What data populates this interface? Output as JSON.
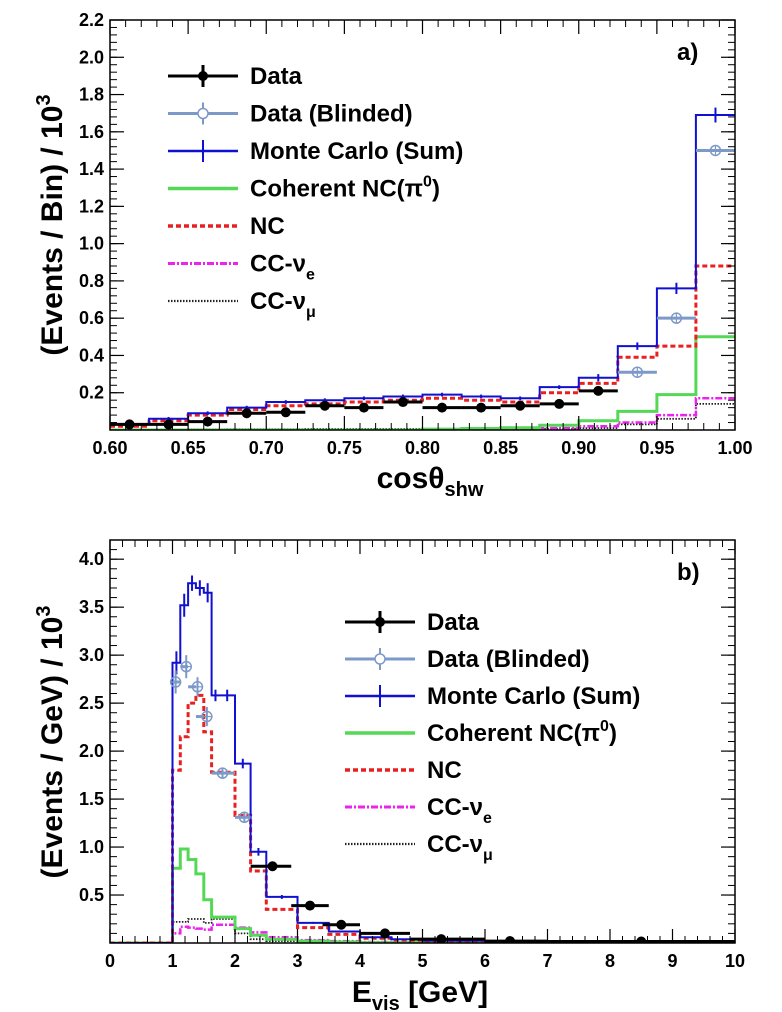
{
  "chart_data": [
    {
      "type": "line",
      "panel_label": "a)",
      "xlabel": "cosθ",
      "xlabel_sub": "shw",
      "ylabel": "(Events / Bin) / 10",
      "ylabel_sup": "3",
      "xlim": [
        0.6,
        1.0
      ],
      "ylim": [
        0,
        2.2
      ],
      "x_ticks": [
        0.6,
        0.65,
        0.7,
        0.75,
        0.8,
        0.85,
        0.9,
        0.95,
        1.0
      ],
      "x_tick_labels": [
        "0.60",
        "0.65",
        "0.70",
        "0.75",
        "0.80",
        "0.85",
        "0.90",
        "0.95",
        "1.00"
      ],
      "y_ticks": [
        0.2,
        0.4,
        0.6,
        0.8,
        1.0,
        1.2,
        1.4,
        1.6,
        1.8,
        2.0,
        2.2
      ],
      "y_tick_labels": [
        "0.2",
        "0.4",
        "0.6",
        "0.8",
        "1.0",
        "1.2",
        "1.4",
        "1.6",
        "1.8",
        "2.0",
        "2.2"
      ],
      "bin_edges": [
        0.6,
        0.625,
        0.65,
        0.675,
        0.7,
        0.725,
        0.75,
        0.775,
        0.8,
        0.825,
        0.85,
        0.875,
        0.9,
        0.925,
        0.95,
        0.975,
        1.0
      ],
      "series": [
        {
          "name": "Monte Carlo (Sum)",
          "style": "mc",
          "color": "#1010d0",
          "values": [
            0.03,
            0.06,
            0.09,
            0.12,
            0.15,
            0.16,
            0.17,
            0.18,
            0.19,
            0.18,
            0.17,
            0.23,
            0.28,
            0.45,
            0.76,
            1.69
          ],
          "errors": [
            0.01,
            0.01,
            0.01,
            0.01,
            0.01,
            0.01,
            0.01,
            0.01,
            0.01,
            0.01,
            0.01,
            0.01,
            0.02,
            0.02,
            0.03,
            0.04
          ]
        },
        {
          "name": "NC",
          "style": "nc",
          "color": "#e82020",
          "values": [
            0.02,
            0.05,
            0.08,
            0.11,
            0.13,
            0.14,
            0.15,
            0.16,
            0.17,
            0.16,
            0.15,
            0.2,
            0.25,
            0.39,
            0.45,
            0.88
          ]
        },
        {
          "name": "Coherent NC(π0)",
          "style": "coh",
          "color": "#55d855",
          "values": [
            0.0,
            0.0,
            0.0,
            0.0,
            0.0,
            0.0,
            0.0,
            0.0,
            0.005,
            0.008,
            0.012,
            0.025,
            0.05,
            0.1,
            0.19,
            0.5
          ]
        },
        {
          "name": "CC-νe",
          "style": "cce",
          "color": "#ee22ee",
          "values": [
            0.0,
            0.0,
            0.0,
            0.0,
            0.0,
            0.0,
            0.0,
            0.0,
            0.0,
            0.0,
            0.005,
            0.01,
            0.02,
            0.04,
            0.08,
            0.17
          ]
        },
        {
          "name": "CC-νμ",
          "style": "ccm",
          "color": "#222222",
          "values": [
            0.003,
            0.003,
            0.004,
            0.005,
            0.005,
            0.006,
            0.006,
            0.006,
            0.006,
            0.006,
            0.006,
            0.007,
            0.01,
            0.03,
            0.06,
            0.14
          ]
        }
      ],
      "data_points": {
        "name": "Data",
        "color": "#000000",
        "x": [
          0.6125,
          0.6375,
          0.6625,
          0.6875,
          0.7125,
          0.7375,
          0.7625,
          0.7875,
          0.8125,
          0.8375,
          0.8625,
          0.8875,
          0.9125
        ],
        "y": [
          0.03,
          0.03,
          0.045,
          0.09,
          0.095,
          0.13,
          0.12,
          0.15,
          0.12,
          0.12,
          0.13,
          0.14,
          0.21
        ],
        "xerr_ends": [
          [
            0.6,
            0.625
          ],
          [
            0.625,
            0.65
          ],
          [
            0.65,
            0.675
          ],
          [
            0.675,
            0.7
          ],
          [
            0.7,
            0.725
          ],
          [
            0.725,
            0.75
          ],
          [
            0.75,
            0.775
          ],
          [
            0.775,
            0.8
          ],
          [
            0.8,
            0.825
          ],
          [
            0.825,
            0.85
          ],
          [
            0.85,
            0.875
          ],
          [
            0.875,
            0.9
          ],
          [
            0.9,
            0.925
          ]
        ]
      },
      "blinded_points": {
        "name": "Data (Blinded)",
        "color": "#7d99c8",
        "x": [
          0.9375,
          0.9625,
          0.9875
        ],
        "y": [
          0.31,
          0.6,
          1.5
        ],
        "xerr_ends": [
          [
            0.925,
            0.95
          ],
          [
            0.95,
            0.975
          ],
          [
            0.975,
            1.0
          ]
        ]
      },
      "legend": {
        "placement": "top-left",
        "entries": [
          {
            "label": "Data",
            "sub": "",
            "sup": "",
            "style": "data"
          },
          {
            "label": "Data (Blinded)",
            "sub": "",
            "sup": "",
            "style": "blinded"
          },
          {
            "label": "Monte Carlo (Sum)",
            "sub": "",
            "sup": "",
            "style": "mc"
          },
          {
            "label": "Coherent NC(π",
            "sub": "",
            "sup": "0",
            "tail": ")",
            "style": "coh"
          },
          {
            "label": "NC",
            "sub": "",
            "sup": "",
            "style": "nc"
          },
          {
            "label": "CC-ν",
            "sub": "e",
            "sup": "",
            "style": "cce"
          },
          {
            "label": "CC-ν",
            "sub": "μ",
            "sup": "",
            "style": "ccm"
          }
        ]
      }
    },
    {
      "type": "line",
      "panel_label": "b)",
      "xlabel": "E",
      "xlabel_sub": "vis",
      "xlabel_tail": " [GeV]",
      "ylabel": "(Events / GeV) / 10",
      "ylabel_sup": "3",
      "xlim": [
        0,
        10
      ],
      "ylim": [
        0,
        4.2
      ],
      "x_ticks": [
        0,
        1,
        2,
        3,
        4,
        5,
        6,
        7,
        8,
        9,
        10
      ],
      "x_tick_labels": [
        "0",
        "1",
        "2",
        "3",
        "4",
        "5",
        "6",
        "7",
        "8",
        "9",
        "10"
      ],
      "y_ticks": [
        0.5,
        1.0,
        1.5,
        2.0,
        2.5,
        3.0,
        3.5,
        4.0
      ],
      "y_tick_labels": [
        "0.5",
        "1.0",
        "1.5",
        "2.0",
        "2.5",
        "3.0",
        "3.5",
        "4.0"
      ],
      "bin_edges": [
        0,
        1,
        1.125,
        1.25,
        1.375,
        1.5,
        1.625,
        1.75,
        2,
        2.25,
        2.5,
        3,
        3.5,
        4,
        4.5,
        5,
        6,
        7,
        8,
        9,
        10
      ],
      "series": [
        {
          "name": "Monte Carlo (Sum)",
          "style": "mc",
          "color": "#1010d0",
          "values": [
            0,
            2.92,
            3.52,
            3.75,
            3.7,
            3.65,
            2.58,
            2.58,
            1.87,
            0.95,
            0.48,
            0.21,
            0.12,
            0.06,
            0.04,
            0.025,
            0.012,
            0.006,
            0.004,
            0.002
          ],
          "errors": [
            0,
            0.12,
            0.12,
            0.08,
            0.08,
            0.1,
            0.06,
            0.06,
            0.05,
            0.04,
            0.02,
            0.01,
            0.01,
            0.005,
            0.005,
            0.003,
            0.002,
            0.001,
            0.001,
            0.001
          ]
        },
        {
          "name": "NC",
          "style": "nc",
          "color": "#e82020",
          "values": [
            0,
            1.8,
            2.15,
            2.5,
            2.58,
            2.2,
            1.78,
            1.78,
            1.33,
            0.75,
            0.35,
            0.16,
            0.09,
            0.05,
            0.03,
            0.02,
            0.01,
            0.005,
            0.003,
            0.002
          ]
        },
        {
          "name": "Coherent NC(π0)",
          "style": "coh",
          "color": "#55d855",
          "values": [
            0,
            0.78,
            0.98,
            0.87,
            0.72,
            0.45,
            0.27,
            0.27,
            0.15,
            0.08,
            0.04,
            0.02,
            0.01,
            0.004,
            0.002,
            0.001,
            0,
            0,
            0,
            0
          ]
        },
        {
          "name": "CC-νe",
          "style": "cce",
          "color": "#ee22ee",
          "values": [
            0,
            0.1,
            0.17,
            0.16,
            0.15,
            0.14,
            0.19,
            0.19,
            0.16,
            0.11,
            0.06,
            0.03,
            0.02,
            0.01,
            0.005,
            0.003,
            0.001,
            0,
            0,
            0
          ]
        },
        {
          "name": "CC-νμ",
          "style": "ccm",
          "color": "#222222",
          "values": [
            0,
            0.22,
            0.22,
            0.25,
            0.25,
            0.21,
            0.25,
            0.25,
            0.1,
            0.04,
            0.02,
            0.01,
            0.005,
            0.002,
            0.001,
            0,
            0,
            0,
            0,
            0
          ]
        }
      ],
      "data_points": {
        "name": "Data",
        "color": "#000000",
        "x": [
          2.6,
          3.2,
          3.7,
          4.4,
          5.3,
          6.4,
          8.5
        ],
        "y": [
          0.8,
          0.39,
          0.19,
          0.1,
          0.04,
          0.02,
          0.015
        ],
        "xerr_ends": [
          [
            2.25,
            2.9
          ],
          [
            2.9,
            3.5
          ],
          [
            3.4,
            4.0
          ],
          [
            4.0,
            4.8
          ],
          [
            4.8,
            6.0
          ],
          [
            6.0,
            7.0
          ],
          [
            7.0,
            10.0
          ]
        ]
      },
      "blinded_points": {
        "name": "Data (Blinded)",
        "color": "#7d99c8",
        "x": [
          1.05,
          1.22,
          1.4,
          1.55,
          1.8,
          2.15
        ],
        "y": [
          2.72,
          2.88,
          2.67,
          2.36,
          1.77,
          1.31
        ],
        "yerr": [
          0.12,
          0.12,
          0.1,
          0.1,
          0.05,
          0.05
        ],
        "xerr_ends": [
          [
            1.0,
            1.125
          ],
          [
            1.125,
            1.25
          ],
          [
            1.25,
            1.375
          ],
          [
            1.375,
            1.5
          ],
          [
            1.625,
            2.0
          ],
          [
            2.0,
            2.25
          ]
        ]
      },
      "legend": {
        "placement": "top-right",
        "entries": [
          {
            "label": "Data",
            "sub": "",
            "sup": "",
            "style": "data"
          },
          {
            "label": "Data (Blinded)",
            "sub": "",
            "sup": "",
            "style": "blinded"
          },
          {
            "label": "Monte Carlo (Sum)",
            "sub": "",
            "sup": "",
            "style": "mc"
          },
          {
            "label": "Coherent NC(π",
            "sub": "",
            "sup": "0",
            "tail": ")",
            "style": "coh"
          },
          {
            "label": "NC",
            "sub": "",
            "sup": "",
            "style": "nc"
          },
          {
            "label": "CC-ν",
            "sub": "e",
            "sup": "",
            "style": "cce"
          },
          {
            "label": "CC-ν",
            "sub": "μ",
            "sup": "",
            "style": "ccm"
          }
        ]
      }
    }
  ]
}
